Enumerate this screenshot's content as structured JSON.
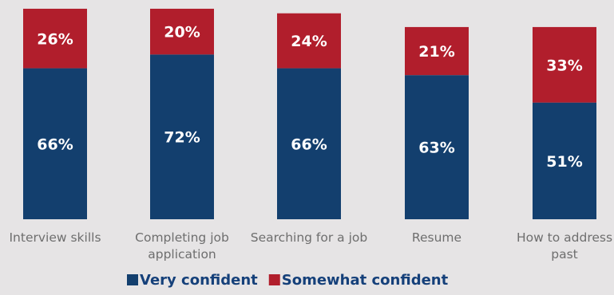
{
  "chart_data": {
    "type": "bar",
    "stacked": true,
    "categories": [
      [
        "Interview skills"
      ],
      [
        "Completing job",
        "application"
      ],
      [
        "Searching for a job"
      ],
      [
        "Resume"
      ],
      [
        "How to address",
        "past"
      ]
    ],
    "series": [
      {
        "name": "Very confident",
        "values": [
          66,
          72,
          66,
          63,
          51
        ],
        "color": "#133f6e"
      },
      {
        "name": "Somewhat confident",
        "values": [
          26,
          20,
          24,
          21,
          33
        ],
        "color": "#b11e2c"
      }
    ],
    "value_suffix": "%",
    "ylim": [
      0,
      100
    ],
    "grid": false,
    "legend": "bottom-center",
    "title": "",
    "xlabel": "",
    "ylabel": ""
  }
}
